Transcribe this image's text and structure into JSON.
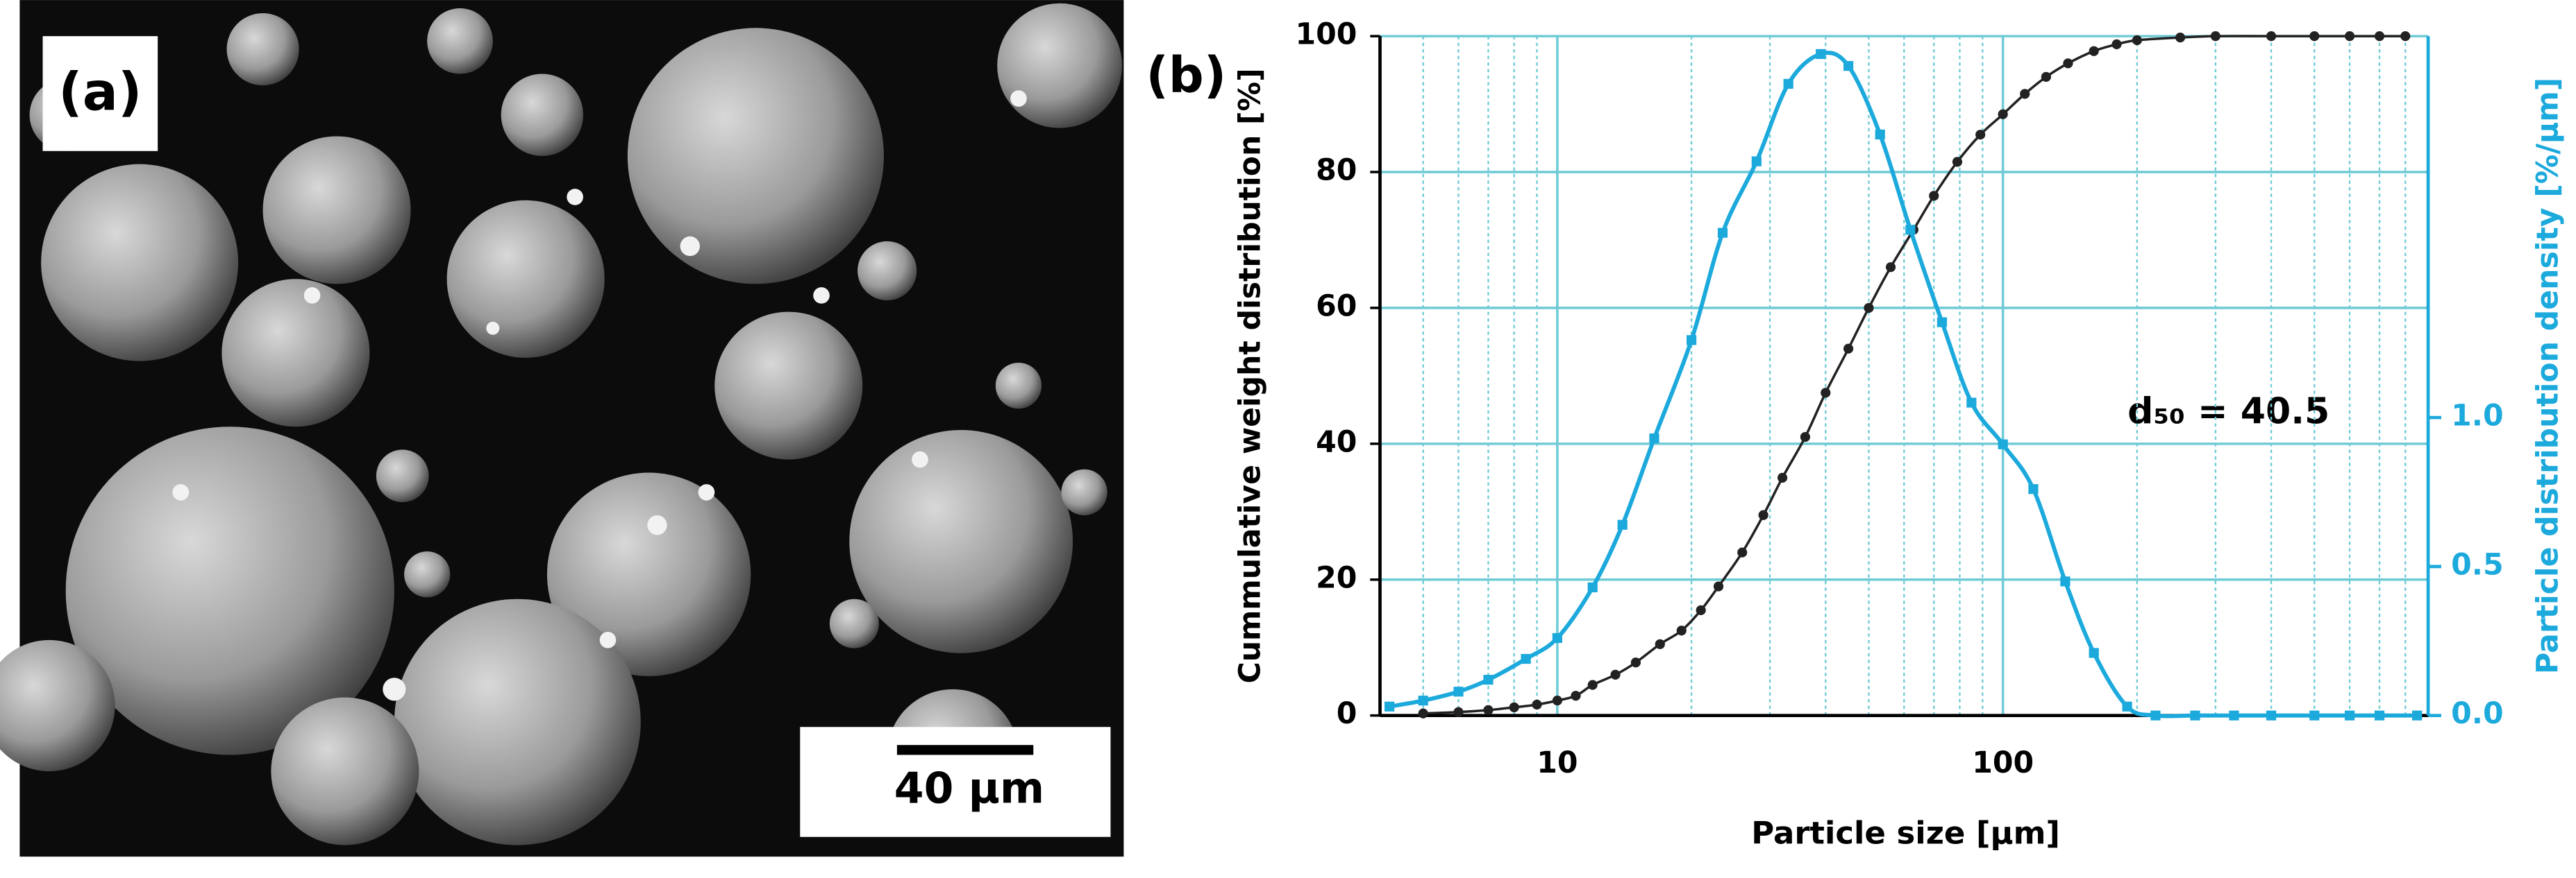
{
  "image_panel": {
    "label": "(a)",
    "scale_bar": "40 µm"
  },
  "chart_data": {
    "type": "line",
    "panel_label": "(b)",
    "xlabel": "Particle size [µm]",
    "ylabel": "Cummulative weight distribution [%]",
    "y2label": "Particle  distribution density [%/µm]",
    "annotation": "d₅₀ = 40.5",
    "xscale": "log",
    "xlim": [
      4,
      900
    ],
    "xticks": [
      10,
      100
    ],
    "xminor_ticks": [
      5,
      6,
      7,
      8,
      9,
      20,
      30,
      40,
      50,
      60,
      70,
      80,
      90,
      200,
      300,
      400,
      500,
      600,
      700,
      800
    ],
    "ylim": [
      0,
      100
    ],
    "yticks": [
      0,
      20,
      40,
      60,
      80,
      100
    ],
    "y2lim": [
      0,
      2.28
    ],
    "y2ticks": [
      {
        "value": 0,
        "label": "0.0"
      },
      0.5,
      {
        "value": 1,
        "label": "1.0"
      }
    ],
    "grid": true,
    "grid_color": "#6fcbd6",
    "y2color": "#1ca9dc",
    "series": [
      {
        "color": "#222222",
        "marker": "circle",
        "x": [
          5,
          6,
          7,
          8,
          9,
          10,
          11,
          12,
          13.5,
          15,
          17,
          19,
          21,
          23,
          26,
          29,
          32,
          36,
          40,
          45,
          50,
          56,
          63,
          70,
          79,
          89,
          100,
          112,
          125,
          140,
          160,
          180,
          200,
          250,
          300,
          400,
          500,
          600,
          700,
          800
        ],
        "values": [
          0.3,
          0.5,
          0.8,
          1.2,
          1.6,
          2.2,
          2.9,
          4.5,
          6,
          7.8,
          10.5,
          12.5,
          15.5,
          19,
          24,
          29.5,
          35,
          41,
          47.5,
          54,
          60,
          66,
          71.5,
          76.5,
          81.5,
          85.5,
          88.5,
          91.5,
          94,
          96,
          97.8,
          98.8,
          99.4,
          99.8,
          100,
          100,
          100,
          100,
          100,
          100
        ]
      },
      {
        "color": "#1ca9dc",
        "marker": "square",
        "axis": "y2",
        "x": [
          4.2,
          5,
          6,
          7,
          8.5,
          10,
          12,
          14,
          16.5,
          20,
          23.5,
          28,
          33,
          39,
          45,
          53,
          62,
          73,
          85,
          100,
          117,
          138,
          160,
          190,
          220,
          270,
          330,
          400,
          500,
          600,
          700,
          850
        ],
        "values": [
          0.03,
          0.05,
          0.08,
          0.12,
          0.19,
          0.26,
          0.43,
          0.64,
          0.93,
          1.26,
          1.62,
          1.86,
          2.12,
          2.22,
          2.18,
          1.95,
          1.63,
          1.32,
          1.05,
          0.91,
          0.76,
          0.45,
          0.21,
          0.03,
          0,
          0,
          0,
          0,
          0,
          0,
          0,
          0
        ]
      }
    ]
  }
}
